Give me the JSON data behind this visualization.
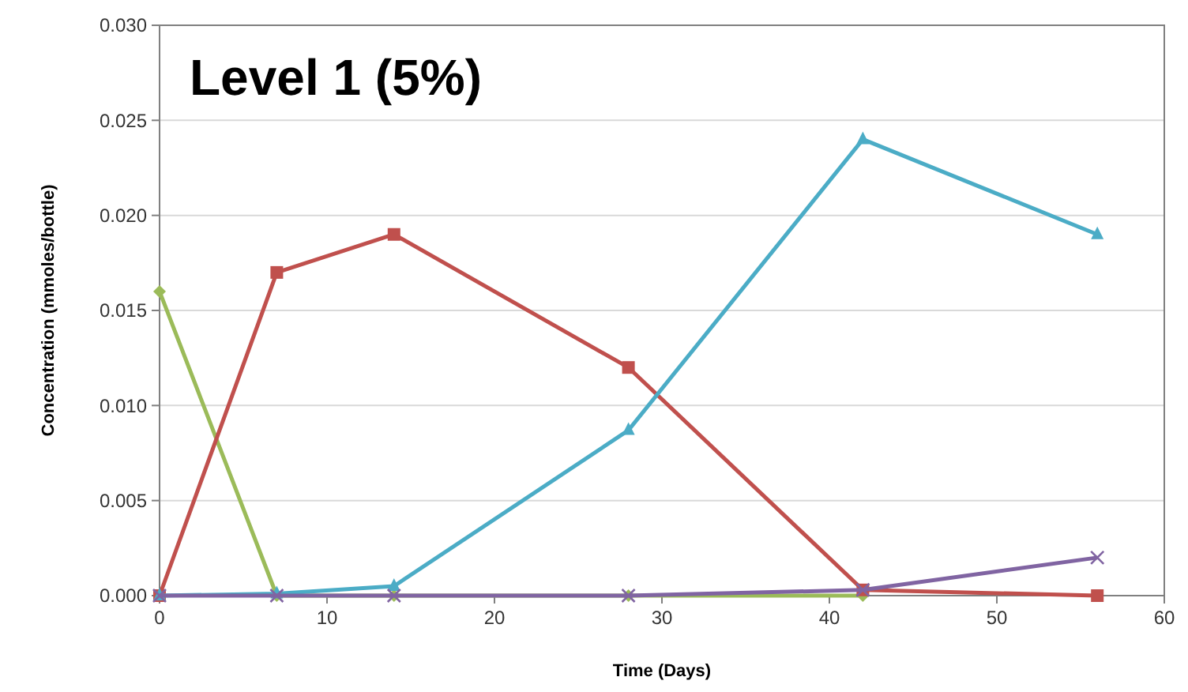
{
  "chart_data": {
    "type": "line",
    "title": "Level 1 (5%)",
    "xlabel": "Time (Days)",
    "ylabel": "Concentration (mmoles/bottle)",
    "x": [
      0,
      7,
      14,
      28,
      42,
      56
    ],
    "series": [
      {
        "color": "#9bbb59",
        "marker": "diamond",
        "values": [
          0.016,
          0,
          0,
          0,
          0,
          null
        ]
      },
      {
        "color": "#c0504d",
        "marker": "square",
        "values": [
          0,
          0.017,
          0.019,
          0.012,
          0.0003,
          0
        ]
      },
      {
        "color": "#4bacc6",
        "marker": "triangle",
        "values": [
          0,
          0.0001,
          0.0005,
          0.0087,
          0.024,
          0.019
        ]
      },
      {
        "color": "#8064a2",
        "marker": "cross",
        "values": [
          0,
          0,
          0,
          0,
          0.0003,
          0.002
        ]
      }
    ],
    "xlim": [
      0,
      60
    ],
    "xticks": [
      0,
      10,
      20,
      30,
      40,
      50,
      60
    ],
    "ylim": [
      0,
      0.03
    ],
    "yticks": [
      {
        "value": 0,
        "label": "0.000"
      },
      {
        "value": 0.005,
        "label": "0.005"
      },
      {
        "value": 0.01,
        "label": "0.010"
      },
      {
        "value": 0.015,
        "label": "0.015"
      },
      {
        "value": 0.02,
        "label": "0.020"
      },
      {
        "value": 0.025,
        "label": "0.025"
      },
      {
        "value": 0.03,
        "label": "0.030"
      }
    ],
    "grid": "y",
    "line_style": "solid"
  }
}
